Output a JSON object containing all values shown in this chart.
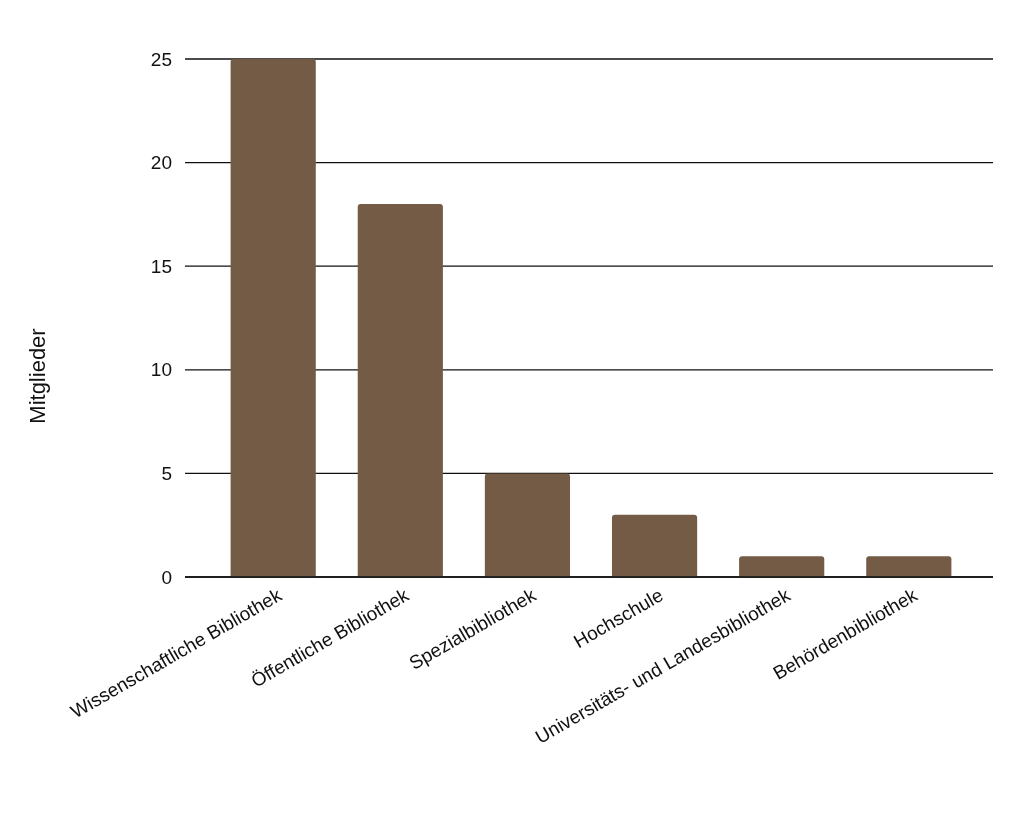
{
  "chart_data": {
    "type": "bar",
    "ylabel": "Mitglieder",
    "categories": [
      "Wissenschaftliche Bibliothek",
      "Öffentliche Bibliothek",
      "Spezialbibliothek",
      "Hochschule",
      "Universitäts- und Landesbibliothek",
      "Behördenbibliothek"
    ],
    "values": [
      25,
      18,
      5,
      3,
      1,
      1
    ],
    "color": "#735b45",
    "ylim": [
      0,
      25
    ],
    "yticks": [
      0,
      5,
      10,
      15,
      20,
      25
    ],
    "grid": "y"
  }
}
